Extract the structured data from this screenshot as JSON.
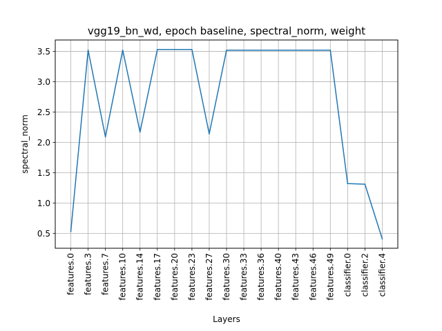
{
  "chart_data": {
    "type": "line",
    "title": "vgg19_bn_wd, epoch baseline, spectral_norm, weight",
    "xlabel": "Layers",
    "ylabel": "spectral_norm",
    "categories": [
      "features.0",
      "features.3",
      "features.7",
      "features.10",
      "features.14",
      "features.17",
      "features.20",
      "features.23",
      "features.27",
      "features.30",
      "features.33",
      "features.36",
      "features.40",
      "features.43",
      "features.46",
      "features.49",
      "classifier.0",
      "classifier.2",
      "classifier.4"
    ],
    "series": [
      {
        "values": [
          0.53,
          3.52,
          2.09,
          3.52,
          2.17,
          3.53,
          3.53,
          3.53,
          2.14,
          3.52,
          3.52,
          3.52,
          3.52,
          3.52,
          3.52,
          3.52,
          1.32,
          1.31,
          0.41
        ],
        "color": "#1f77b4"
      }
    ],
    "yticks": [
      0.5,
      1.0,
      1.5,
      2.0,
      2.5,
      3.0,
      3.5
    ],
    "ytick_labels": [
      "0.5",
      "1.0",
      "1.5",
      "2.0",
      "2.5",
      "3.0",
      "3.5"
    ],
    "ylim": [
      0.254,
      3.687
    ],
    "grid": true,
    "legend": "none"
  }
}
